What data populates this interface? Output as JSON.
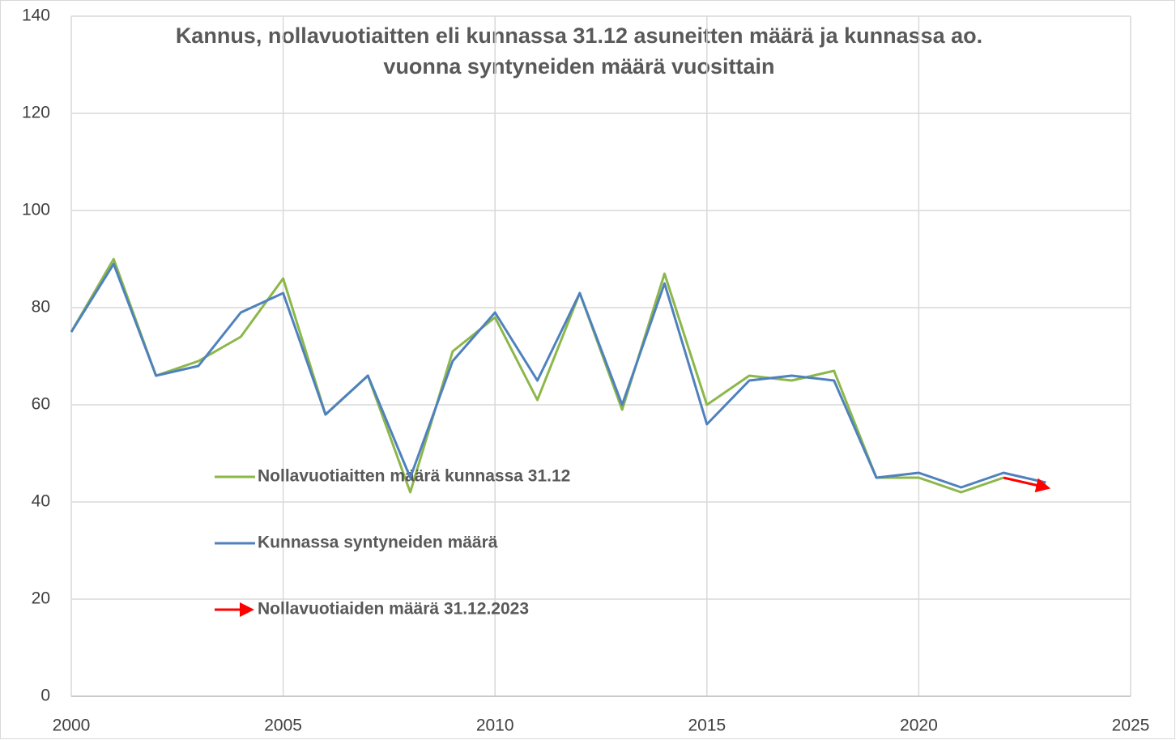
{
  "chart_data": {
    "type": "line",
    "title": [
      "Kannus, nollavuotiaitten eli kunnassa 31.12 asuneitten määrä ja kunnassa ao.",
      "vuonna syntyneiden määrä vuosittain"
    ],
    "x": [
      2000,
      2001,
      2002,
      2003,
      2004,
      2005,
      2006,
      2007,
      2008,
      2009,
      2010,
      2011,
      2012,
      2013,
      2014,
      2015,
      2016,
      2017,
      2018,
      2019,
      2020,
      2021,
      2022,
      2023
    ],
    "series": [
      {
        "name": "Nollavuotiaitten määrä kunnassa 31.12",
        "color": "#8cb74a",
        "values": [
          75,
          90,
          66,
          69,
          74,
          86,
          58,
          66,
          42,
          71,
          78,
          61,
          83,
          59,
          87,
          60,
          66,
          65,
          67,
          45,
          45,
          42,
          45,
          null
        ]
      },
      {
        "name": "Kunnassa syntyneiden määrä",
        "color": "#4f81bd",
        "values": [
          75,
          89,
          66,
          68,
          79,
          83,
          58,
          66,
          45,
          69,
          79,
          65,
          83,
          60,
          85,
          56,
          65,
          66,
          65,
          45,
          46,
          43,
          46,
          44
        ]
      },
      {
        "name": "Nollavuotiaiden määrä 31.12.2023",
        "color": "#ff0000",
        "arrow": true,
        "values": [
          null,
          null,
          null,
          null,
          null,
          null,
          null,
          null,
          null,
          null,
          null,
          null,
          null,
          null,
          null,
          null,
          null,
          null,
          null,
          null,
          null,
          null,
          45,
          43
        ]
      }
    ],
    "xlim": [
      2000,
      2025
    ],
    "xticks": [
      2000,
      2005,
      2010,
      2015,
      2020,
      2025
    ],
    "ylim": [
      0,
      140
    ],
    "yticks": [
      0,
      20,
      40,
      60,
      80,
      100,
      120,
      140
    ],
    "grid": true
  }
}
